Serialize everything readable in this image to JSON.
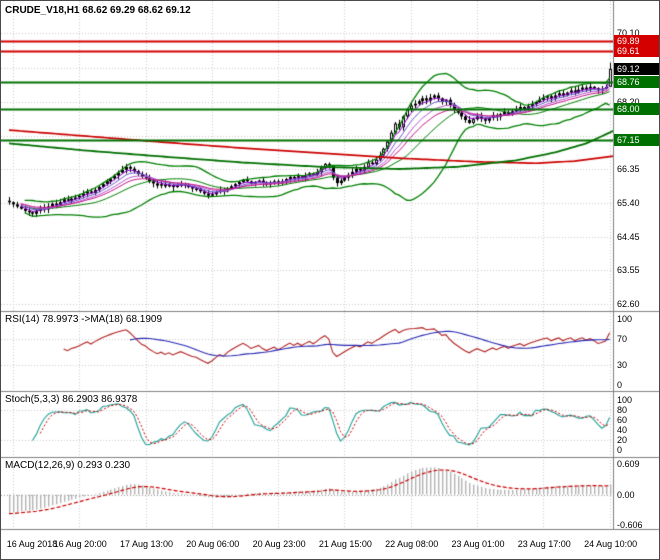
{
  "time_axis": {
    "labels": [
      "16 Aug 2018",
      "16 Aug 20:00",
      "17 Aug 13:00",
      "20 Aug 06:00",
      "20 Aug 23:00",
      "21 Aug 15:00",
      "22 Aug 08:00",
      "23 Aug 01:00",
      "23 Aug 17:00",
      "24 Aug 10:00"
    ],
    "bar_positions": [
      1,
      18,
      35,
      52,
      69,
      86,
      103,
      120,
      137,
      154
    ]
  },
  "colors": {
    "background": "#FFFFFF",
    "grid": "#CDCDCD",
    "candle_outline": "#000000",
    "candle_bull": "#FFFFFF",
    "candle_bear": "#000000",
    "bollinger": "#008000",
    "ma_red": "#CC0000",
    "ma_green": "#007000",
    "level_red": "#D40000",
    "level_green": "#007000",
    "price_tag_bg": "#000000",
    "rsi": "#B22222",
    "rsi_ma": "#2A2AB4",
    "stoch_k": "#20A29A",
    "stoch_d": "#CC0000",
    "macd_hist": "#B4B4B4",
    "macd_signal": "#CC0000",
    "panel_border": "#808080",
    "text": "#000000"
  },
  "chart_data": [
    {
      "type": "candlestick",
      "symbol": "CRUDE_V18",
      "timeframe": "H1",
      "title": "CRUDE_V18,H1 68.62 69.29 68.62 69.12",
      "current_bar": {
        "open": 68.62,
        "high": 69.29,
        "low": 68.62,
        "close": 69.12
      },
      "ylim": [
        62.43,
        71.0
      ],
      "closes": [
        65.42,
        65.36,
        65.3,
        65.24,
        65.18,
        65.14,
        65.1,
        65.18,
        65.26,
        65.22,
        65.3,
        65.38,
        65.34,
        65.42,
        65.5,
        65.46,
        65.52,
        65.55,
        65.6,
        65.66,
        65.72,
        65.68,
        65.76,
        65.84,
        65.92,
        66.0,
        66.08,
        66.16,
        66.24,
        66.32,
        66.4,
        66.35,
        66.28,
        66.2,
        66.12,
        66.08,
        66.0,
        65.94,
        65.88,
        65.92,
        65.86,
        65.9,
        65.84,
        65.88,
        65.92,
        65.88,
        65.84,
        65.8,
        65.78,
        65.72,
        65.66,
        65.6,
        65.64,
        65.7,
        65.76,
        65.72,
        65.8,
        65.86,
        65.92,
        65.98,
        66.04,
        66.0,
        65.94,
        65.98,
        66.02,
        65.96,
        65.92,
        65.96,
        66.0,
        65.95,
        66.0,
        66.06,
        66.12,
        66.08,
        66.14,
        66.1,
        66.16,
        66.22,
        66.18,
        66.26,
        66.38,
        66.48,
        66.42,
        66.1,
        65.95,
        66.02,
        66.1,
        66.18,
        66.26,
        66.34,
        66.3,
        66.4,
        66.52,
        66.48,
        66.6,
        66.72,
        66.9,
        67.1,
        67.35,
        67.6,
        67.5,
        67.8,
        68.0,
        68.1,
        68.15,
        68.22,
        68.3,
        68.24,
        68.32,
        68.38,
        68.3,
        68.2,
        68.26,
        68.12,
        68.0,
        67.9,
        67.8,
        67.7,
        67.62,
        67.72,
        67.8,
        67.74,
        67.68,
        67.76,
        67.84,
        67.78,
        67.86,
        67.92,
        67.86,
        67.94,
        68.0,
        68.06,
        68.0,
        68.08,
        68.14,
        68.2,
        68.26,
        68.32,
        68.36,
        68.3,
        68.38,
        68.44,
        68.38,
        68.46,
        68.52,
        68.46,
        68.54,
        68.6,
        68.55,
        68.62,
        68.58,
        68.52,
        68.56,
        68.62,
        69.12
      ],
      "axis_labels": [
        {
          "text": "70.10",
          "value": 70.1
        },
        {
          "text": "68.20",
          "value": 68.2
        },
        {
          "text": "66.35",
          "value": 66.35
        },
        {
          "text": "65.40",
          "value": 65.4
        },
        {
          "text": "64.45",
          "value": 64.45
        },
        {
          "text": "63.55",
          "value": 63.55
        },
        {
          "text": "62.60",
          "value": 62.6
        }
      ],
      "gridline_values": [
        70.1,
        69.15,
        68.2,
        67.25,
        66.35,
        65.4,
        64.45,
        63.55,
        62.6
      ],
      "levels": [
        {
          "label": "69.89",
          "value": 69.89,
          "color": "#D40000"
        },
        {
          "label": "69.61",
          "value": 69.61,
          "color": "#D40000"
        },
        {
          "label": "68.76",
          "value": 68.76,
          "color": "#007000"
        },
        {
          "label": "68.00",
          "value": 68.0,
          "color": "#007000"
        },
        {
          "label": "67.15",
          "value": 67.15,
          "color": "#007000"
        }
      ],
      "price_tag": {
        "label": "69.12",
        "value": 69.12
      },
      "overlays": {
        "bollinger": {
          "period": 20,
          "deviation": 2
        },
        "ema_periods": [
          4,
          7,
          11,
          15
        ],
        "ema_colors": [
          "#9400D3",
          "#6A5ACD",
          "#BA55D3",
          "#C71585"
        ],
        "slow_ma_red": [
          [
            0,
            67.42
          ],
          [
            20,
            67.25
          ],
          [
            40,
            67.08
          ],
          [
            60,
            66.92
          ],
          [
            80,
            66.78
          ],
          [
            100,
            66.64
          ],
          [
            120,
            66.54
          ],
          [
            135,
            66.5
          ],
          [
            145,
            66.56
          ],
          [
            155,
            66.7
          ]
        ],
        "slow_ma_green": [
          [
            0,
            67.05
          ],
          [
            20,
            66.85
          ],
          [
            40,
            66.68
          ],
          [
            60,
            66.52
          ],
          [
            80,
            66.4
          ],
          [
            100,
            66.34
          ],
          [
            115,
            66.4
          ],
          [
            130,
            66.58
          ],
          [
            140,
            66.8
          ],
          [
            148,
            67.05
          ],
          [
            155,
            67.4
          ]
        ]
      }
    },
    {
      "type": "line",
      "title": "RSI(14) 78.9973 ->MA(18) 68.1909",
      "indicator": "RSI",
      "period": 14,
      "value": 78.9973,
      "ma_period": 18,
      "ma_value": 68.1909,
      "ylim": [
        0,
        100
      ],
      "level_lines": [
        70,
        30
      ],
      "axis_labels": [
        {
          "text": "100",
          "value": 100
        },
        {
          "text": "70",
          "value": 70
        },
        {
          "text": "30",
          "value": 30
        },
        {
          "text": "0",
          "value": 0
        }
      ]
    },
    {
      "type": "line",
      "title": "Stoch(5,3,3) 86.2903 86.9378",
      "indicator": "Stochastic",
      "k_value": 86.2903,
      "d_value": 86.9378,
      "ylim": [
        0,
        100
      ],
      "level_lines": [
        80,
        20
      ],
      "axis_labels": [
        {
          "text": "100",
          "value": 100
        },
        {
          "text": "80",
          "value": 80
        },
        {
          "text": "60",
          "value": 60
        },
        {
          "text": "40",
          "value": 40
        },
        {
          "text": "20",
          "value": 20
        },
        {
          "text": "0",
          "value": 0
        }
      ]
    },
    {
      "type": "bar",
      "title": "MACD(12,26,9) 0.293 0.230",
      "indicator": "MACD",
      "macd_value": 0.293,
      "signal_value": 0.23,
      "ylim": [
        -0.606,
        0.609
      ],
      "axis_labels": [
        {
          "text": "0.609",
          "value": 0.609
        },
        {
          "text": "0.00",
          "value": 0
        },
        {
          "text": "-0.606",
          "value": -0.606
        }
      ]
    }
  ]
}
